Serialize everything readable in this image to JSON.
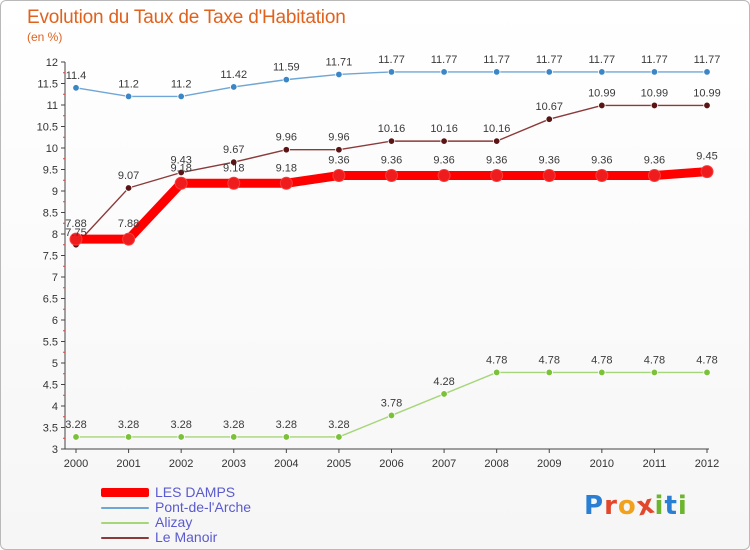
{
  "title": "Evolution du Taux de Taxe d'Habitation",
  "subtitle": "(en %)",
  "logo": {
    "letters": [
      {
        "ch": "P",
        "color": "#2a7fd4"
      },
      {
        "ch": "r",
        "color": "#e2462b"
      },
      {
        "ch": "o",
        "color": "#f0a21e"
      },
      {
        "ch": "x",
        "color": "#e2462b"
      },
      {
        "ch": "i",
        "color": "#6cb52d"
      },
      {
        "ch": "t",
        "color": "#2a7fd4"
      },
      {
        "ch": "i",
        "color": "#6cb52d"
      }
    ]
  },
  "chart_data": {
    "type": "line",
    "title": "Evolution du Taux de Taxe d'Habitation",
    "ylabel": "(en %)",
    "xlabel": "",
    "x": [
      "2000",
      "2001",
      "2002",
      "2003",
      "2004",
      "2005",
      "2006",
      "2007",
      "2008",
      "2009",
      "2010",
      "2011",
      "2012"
    ],
    "ylim": [
      3,
      12
    ],
    "yticks": [
      "3",
      "3.5",
      "4",
      "4.5",
      "5",
      "5.5",
      "6",
      "6.5",
      "7",
      "7.5",
      "8",
      "8.5",
      "9",
      "9.5",
      "10",
      "10.5",
      "11",
      "11.5",
      "12"
    ],
    "grid": false,
    "legend_position": "bottom-left",
    "series": [
      {
        "name": "LES DAMPS",
        "color": "#ff0000",
        "marker": "#ee1c1c",
        "weight": "thick",
        "values": [
          7.88,
          7.88,
          9.18,
          9.18,
          9.18,
          9.36,
          9.36,
          9.36,
          9.36,
          9.36,
          9.36,
          9.36,
          9.45
        ],
        "labels": [
          "7.88",
          "7.88",
          "9.18",
          "9.18",
          "9.18",
          "9.36",
          "9.36",
          "9.36",
          "9.36",
          "9.36",
          "9.36",
          "9.36",
          "9.45"
        ]
      },
      {
        "name": "Pont-de-l'Arche",
        "color": "#6fa6d6",
        "marker": "#3b86c6",
        "weight": "thin",
        "values": [
          11.4,
          11.2,
          11.2,
          11.42,
          11.59,
          11.71,
          11.77,
          11.77,
          11.77,
          11.77,
          11.77,
          11.77,
          11.77
        ],
        "labels": [
          "11.4",
          "11.2",
          "11.2",
          "11.42",
          "11.59",
          "11.71",
          "11.77",
          "11.77",
          "11.77",
          "11.77",
          "11.77",
          "11.77",
          "11.77"
        ]
      },
      {
        "name": "Alizay",
        "color": "#a6d67a",
        "marker": "#7cc13a",
        "weight": "thin",
        "values": [
          3.28,
          3.28,
          3.28,
          3.28,
          3.28,
          3.28,
          3.78,
          4.28,
          4.78,
          4.78,
          4.78,
          4.78,
          4.78
        ],
        "labels": [
          "3.28",
          "3.28",
          "3.28",
          "3.28",
          "3.28",
          "3.28",
          "3.78",
          "4.28",
          "4.78",
          "4.78",
          "4.78",
          "4.78",
          "4.78"
        ]
      },
      {
        "name": "Le Manoir",
        "color": "#8b3a3a",
        "marker": "#5a1414",
        "weight": "thin",
        "values": [
          7.75,
          9.07,
          9.43,
          9.67,
          9.96,
          9.96,
          10.16,
          10.16,
          10.16,
          10.67,
          10.99,
          10.99,
          10.99
        ],
        "labels": [
          "7.75",
          "9.07",
          "9.43",
          "9.67",
          "9.96",
          "9.96",
          "10.16",
          "10.16",
          "10.16",
          "10.67",
          "10.99",
          "10.99",
          "10.99"
        ]
      }
    ]
  }
}
